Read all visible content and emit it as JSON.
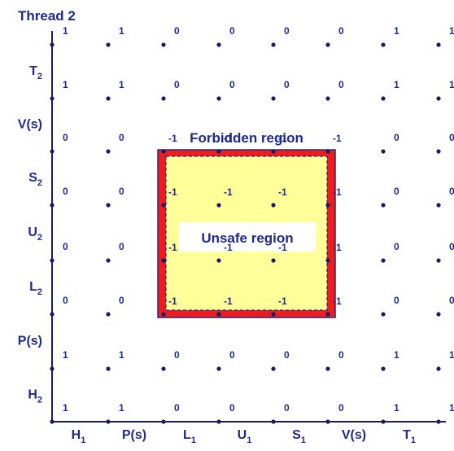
{
  "title": "Thread 2",
  "forbidden_label": "Forbidden region",
  "unsafe_label": "Unsafe region",
  "x_axis_labels": [
    {
      "main": "H",
      "sub": "1"
    },
    {
      "main": "P(s)",
      "sub": ""
    },
    {
      "main": "L",
      "sub": "1"
    },
    {
      "main": "U",
      "sub": "1"
    },
    {
      "main": "S",
      "sub": "1"
    },
    {
      "main": "V(s)",
      "sub": ""
    },
    {
      "main": "T",
      "sub": "1"
    }
  ],
  "y_axis_labels": [
    {
      "main": "H",
      "sub": "2"
    },
    {
      "main": "P(s)",
      "sub": ""
    },
    {
      "main": "L",
      "sub": "2"
    },
    {
      "main": "U",
      "sub": "2"
    },
    {
      "main": "S",
      "sub": "2"
    },
    {
      "main": "V(s)",
      "sub": ""
    },
    {
      "main": "T",
      "sub": "2"
    }
  ],
  "grid_values": [
    [
      "1",
      "1",
      "0",
      "0",
      "0",
      "0",
      "1",
      "1"
    ],
    [
      "1",
      "1",
      "0",
      "0",
      "0",
      "0",
      "1",
      "1"
    ],
    [
      "0",
      "0",
      "-1",
      "-1",
      "-1",
      "-1",
      "0",
      "0"
    ],
    [
      "0",
      "0",
      "-1",
      "-1",
      "-1",
      "-1",
      "0",
      "0"
    ],
    [
      "0",
      "0",
      "-1",
      "-1",
      "-1",
      "-1",
      "0",
      "0"
    ],
    [
      "0",
      "0",
      "-1",
      "-1",
      "-1",
      "-1",
      "0",
      "0"
    ],
    [
      "1",
      "1",
      "0",
      "0",
      "0",
      "0",
      "1",
      "1"
    ],
    [
      "1",
      "1",
      "0",
      "0",
      "0",
      "0",
      "1",
      "1"
    ]
  ],
  "colors": {
    "axis": "#1a1a66",
    "text": "#1f2a8a",
    "forbidden_fill": "#ee1c1c",
    "unsafe_fill": "#ffff99",
    "unsafe_border": "#1f2a8a"
  }
}
